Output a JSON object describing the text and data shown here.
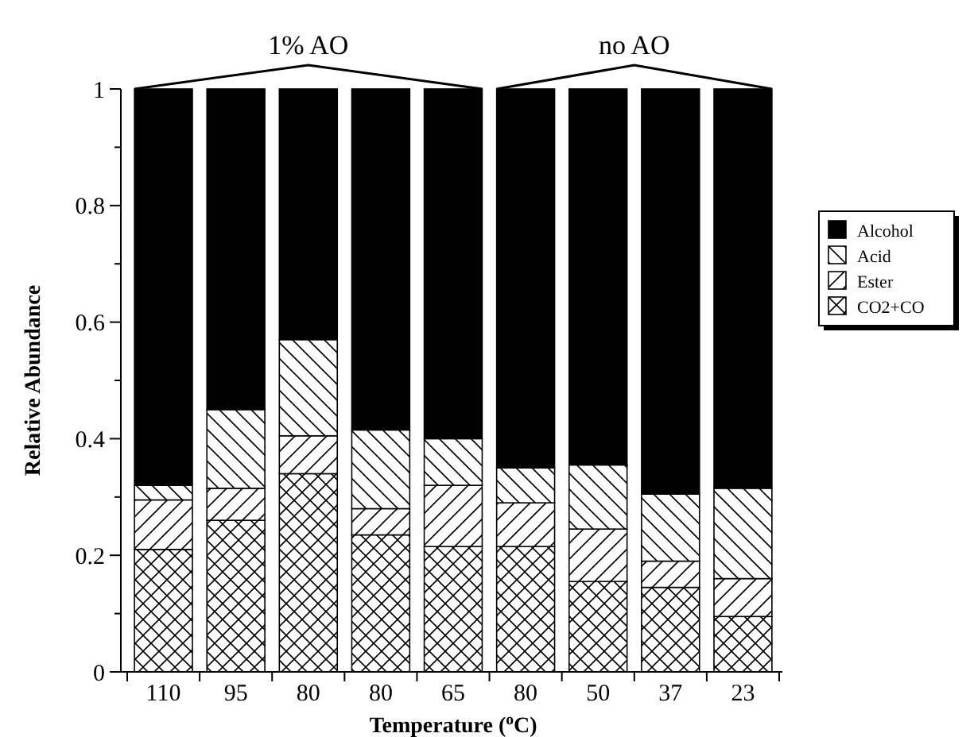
{
  "chart_data": {
    "type": "bar",
    "stacked": true,
    "xlabel": "Temperature ($^{o}$C)",
    "ylabel": "Relative Abundance",
    "categories": [
      "110",
      "95",
      "80",
      "80",
      "65",
      "80",
      "50",
      "37",
      "23"
    ],
    "series": [
      {
        "name": "CO2+CO",
        "color": "#000000",
        "values": [
          0.21,
          0.26,
          0.34,
          0.235,
          0.215,
          0.215,
          0.155,
          0.145,
          0.095
        ]
      },
      {
        "name": "Ester",
        "color": "#000000",
        "values": [
          0.085,
          0.055,
          0.065,
          0.045,
          0.105,
          0.075,
          0.09,
          0.045,
          0.065
        ]
      },
      {
        "name": "Acid",
        "color": "#000000",
        "values": [
          0.025,
          0.135,
          0.165,
          0.135,
          0.08,
          0.06,
          0.11,
          0.115,
          0.155
        ]
      },
      {
        "name": "Alcohol",
        "color": "#000000",
        "values": [
          0.68,
          0.55,
          0.43,
          0.585,
          0.6,
          0.65,
          0.645,
          0.695,
          0.685
        ]
      }
    ],
    "ylim": [
      0,
      1
    ],
    "yticks": [
      0,
      {
        "value": 0.1,
        "label": null
      },
      {
        "value": 0.2,
        "label": "0.2"
      },
      {
        "value": 0.3,
        "label": null
      },
      {
        "value": 0.4,
        "label": "0.4"
      },
      {
        "value": 0.5,
        "label": null
      },
      {
        "value": 0.6,
        "label": "0.6"
      },
      {
        "value": 0.7,
        "label": null
      },
      {
        "value": 0.8,
        "label": "0.8"
      },
      {
        "value": 0.9,
        "label": null
      },
      1
    ],
    "annotations": [
      "1% AO",
      "no AO"
    ],
    "legend": "right",
    "grid": false
  }
}
